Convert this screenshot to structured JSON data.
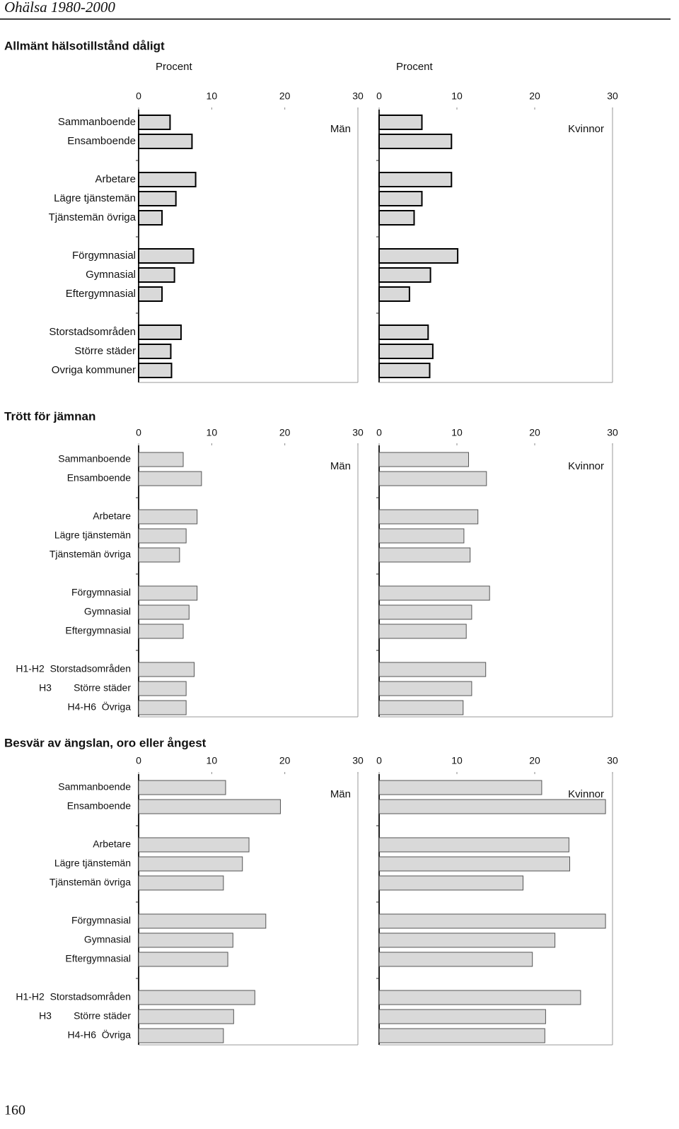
{
  "header": {
    "title": "Ohälsa 1980-2000"
  },
  "page_number": "160",
  "chart_data": [
    {
      "type": "bar",
      "title": "Allmänt hälsotillstånd dåligt",
      "xlabel": "Procent",
      "categories": [
        "Sammanboende",
        "Ensamboende",
        "Arbetare",
        "Lägre tjänstemän",
        "Tjänstemän övriga",
        "Förgymnasial",
        "Gymnasial",
        "Eftergymnasial",
        "Storstadsområden",
        "Större städer",
        "Ovriga kommuner"
      ],
      "xlim": [
        0,
        30
      ],
      "xticks": [
        0,
        10,
        20,
        30
      ],
      "series": [
        {
          "name": "Män",
          "color": "#d9d9d9",
          "values": [
            4.3,
            7.3,
            7.8,
            5.1,
            3.2,
            7.5,
            4.9,
            3.2,
            5.8,
            4.4,
            4.5
          ]
        },
        {
          "name": "Kvinnor",
          "color": "#d9d9d9",
          "values": [
            5.5,
            9.3,
            9.3,
            5.5,
            4.5,
            10.1,
            6.6,
            3.9,
            6.3,
            6.9,
            6.5
          ]
        }
      ]
    },
    {
      "type": "bar",
      "title": "Trött för jämnan",
      "categories": [
        "Sammanboende",
        "Ensamboende",
        "Arbetare",
        "Lägre tjänstemän",
        "Tjänstemän övriga",
        "Förgymnasial",
        "Gymnasial",
        "Eftergymnasial",
        "H1-H2  Storstadsområden",
        "H3        Större städer",
        "H4-H6  Övriga"
      ],
      "xlim": [
        0,
        30
      ],
      "xticks": [
        0,
        10,
        20,
        30
      ],
      "series": [
        {
          "name": "Män",
          "color": "#d9d9d9",
          "values": [
            6.1,
            8.6,
            8.0,
            6.5,
            5.6,
            8.0,
            6.9,
            6.1,
            7.6,
            6.5,
            6.5
          ]
        },
        {
          "name": "Kvinnor",
          "color": "#d9d9d9",
          "values": [
            11.5,
            13.8,
            12.7,
            10.9,
            11.7,
            14.2,
            11.9,
            11.2,
            13.7,
            11.9,
            10.8
          ]
        }
      ]
    },
    {
      "type": "bar",
      "title": "Besvär av ängslan, oro eller ångest",
      "categories": [
        "Sammanboende",
        "Ensamboende",
        "Arbetare",
        "Lägre tjänstemän",
        "Tjänstemän övriga",
        "Förgymnasial",
        "Gymnasial",
        "Eftergymnasial",
        "H1-H2  Storstadsområden",
        "H3        Större städer",
        "H4-H6  Övriga"
      ],
      "xlim": [
        0,
        30
      ],
      "xticks": [
        0,
        10,
        20,
        30
      ],
      "series": [
        {
          "name": "Män",
          "color": "#d9d9d9",
          "values": [
            11.9,
            19.4,
            15.1,
            14.2,
            11.6,
            17.4,
            12.9,
            12.2,
            15.9,
            13.0,
            11.6
          ]
        },
        {
          "name": "Kvinnor",
          "color": "#d9d9d9",
          "values": [
            20.9,
            29.1,
            24.4,
            24.5,
            18.5,
            29.1,
            22.6,
            19.7,
            25.9,
            21.4,
            21.3
          ]
        }
      ]
    }
  ]
}
